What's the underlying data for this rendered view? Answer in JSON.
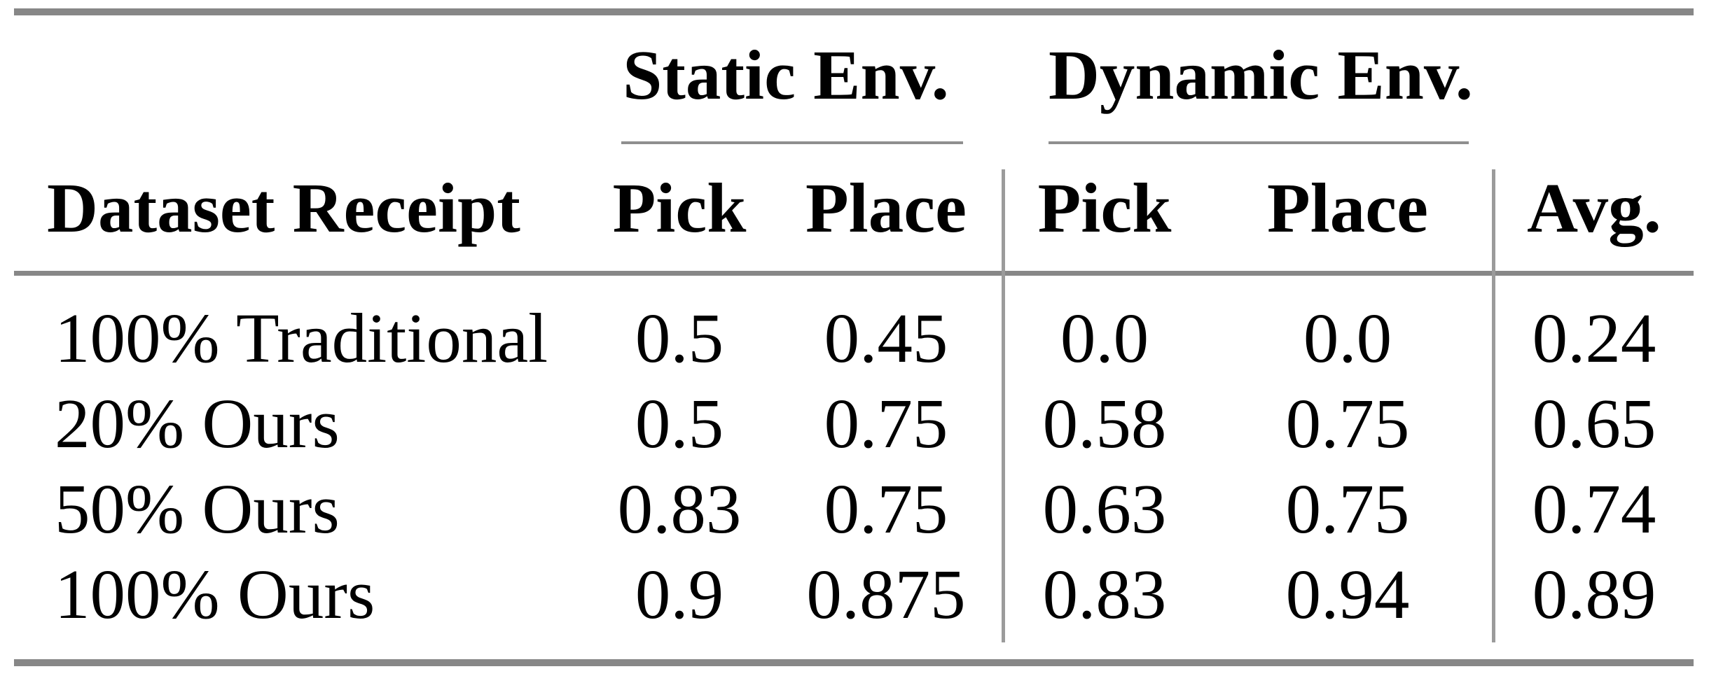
{
  "table": {
    "groups": [
      {
        "label": "Static Env."
      },
      {
        "label": "Dynamic Env."
      }
    ],
    "headers": {
      "row_label": "Dataset Receipt",
      "static_pick": "Pick",
      "static_place": "Place",
      "dynamic_pick": "Pick",
      "dynamic_place": "Place",
      "avg": "Avg."
    },
    "rows": [
      {
        "label": "100% Traditional",
        "static_pick": "0.5",
        "static_place": "0.45",
        "dynamic_pick": "0.0",
        "dynamic_place": "0.0",
        "avg": "0.24"
      },
      {
        "label": "20% Ours",
        "static_pick": "0.5",
        "static_place": "0.75",
        "dynamic_pick": "0.58",
        "dynamic_place": "0.75",
        "avg": "0.65"
      },
      {
        "label": "50% Ours",
        "static_pick": "0.83",
        "static_place": "0.75",
        "dynamic_pick": "0.63",
        "dynamic_place": "0.75",
        "avg": "0.74"
      },
      {
        "label": "100% Ours",
        "static_pick": "0.9",
        "static_place": "0.875",
        "dynamic_pick": "0.83",
        "dynamic_place": "0.94",
        "avg": "0.89"
      }
    ]
  },
  "colors": {
    "background": "#ffffff",
    "text": "#000000",
    "rule_thick": "#878787",
    "rule_thin": "#8f8f8f",
    "rule_vertical": "#9b9b9b"
  },
  "chart_data": {
    "type": "table",
    "column_groups": [
      "",
      "Static Env.",
      "Static Env.",
      "Dynamic Env.",
      "Dynamic Env.",
      ""
    ],
    "columns": [
      "Dataset Receipt",
      "Pick",
      "Place",
      "Pick",
      "Place",
      "Avg."
    ],
    "rows": [
      [
        "100% Traditional",
        0.5,
        0.45,
        0.0,
        0.0,
        0.24
      ],
      [
        "20% Ours",
        0.5,
        0.75,
        0.58,
        0.75,
        0.65
      ],
      [
        "50% Ours",
        0.83,
        0.75,
        0.63,
        0.75,
        0.74
      ],
      [
        "100% Ours",
        0.9,
        0.875,
        0.83,
        0.94,
        0.89
      ]
    ]
  }
}
